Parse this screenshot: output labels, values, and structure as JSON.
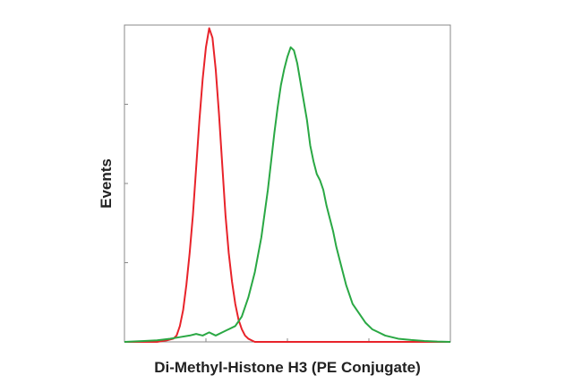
{
  "chart_data": {
    "type": "line",
    "xlabel": "Di-Methyl-Histone H3 (PE Conjugate)",
    "ylabel": "Events",
    "x_range": [
      0,
      100
    ],
    "y_range": [
      0,
      100
    ],
    "grid": false,
    "legend": "none",
    "series": [
      {
        "color": "#e8232a",
        "x": [
          0,
          10,
          13,
          15,
          16,
          17,
          18,
          19,
          20,
          21,
          22,
          23,
          24,
          25,
          26,
          27,
          28,
          29,
          30,
          31,
          32,
          33,
          34,
          35,
          36,
          37,
          38,
          39,
          40,
          100
        ],
        "y": [
          0,
          0,
          0.5,
          1,
          2,
          5,
          10,
          18,
          28,
          40,
          55,
          70,
          83,
          93,
          99,
          96,
          86,
          72,
          56,
          40,
          28,
          19,
          12,
          7,
          4,
          2,
          1,
          0.5,
          0,
          0
        ]
      },
      {
        "color": "#2aa844",
        "x": [
          0,
          6,
          10,
          14,
          17,
          20,
          22,
          24,
          26,
          28,
          30,
          32,
          34,
          36,
          38,
          40,
          42,
          44,
          45,
          46,
          47,
          48,
          49,
          50,
          51,
          52,
          53,
          54,
          55,
          56,
          57,
          58,
          59,
          60,
          61,
          62,
          63,
          64,
          65,
          66,
          67,
          68,
          69,
          70,
          72,
          74,
          76,
          78,
          80,
          82,
          84,
          88,
          92,
          96,
          100
        ],
        "y": [
          0,
          0.3,
          0.5,
          1,
          1.5,
          2,
          2.5,
          2,
          3,
          2,
          3,
          4,
          5,
          8,
          14,
          22,
          33,
          48,
          57,
          66,
          74,
          81,
          86,
          90,
          93,
          92,
          88,
          82,
          76,
          70,
          62,
          57,
          53,
          51,
          48,
          43,
          39,
          35,
          30,
          26,
          22,
          18,
          15,
          12,
          9,
          6,
          4,
          3,
          2,
          1.5,
          1,
          0.6,
          0.3,
          0.1,
          0
        ]
      }
    ]
  }
}
